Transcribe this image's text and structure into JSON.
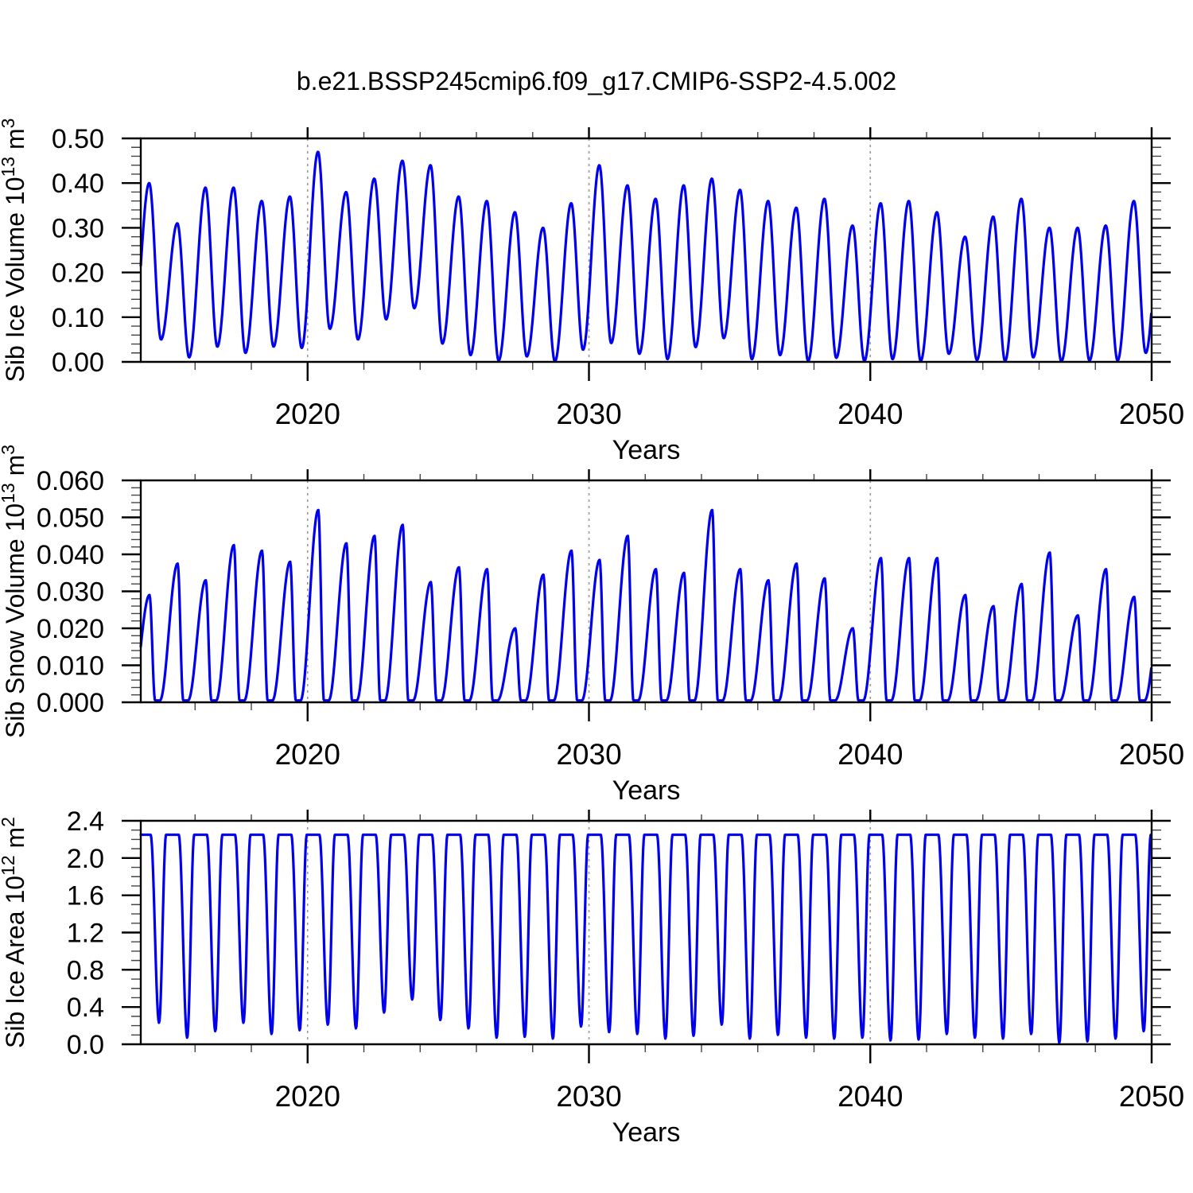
{
  "title": "b.e21.BSSP245cmip6.f09_g17.CMIP6-SSP2-4.5.002",
  "style": {
    "line_color": "#0000ee",
    "line_width": 3.2,
    "grid_color": "#9a9a9a",
    "axis_color": "#000000",
    "background": "#ffffff"
  },
  "chart_data": [
    {
      "id": "sib-ice-volume",
      "type": "line",
      "xlabel": "Years",
      "ylabel_plain": "Sib Ice Volume 10^13 m^3",
      "ylabel_segments": [
        {
          "t": "Sib Ice Volume 10"
        },
        {
          "t": "13",
          "sup": true
        },
        {
          "t": " m"
        },
        {
          "t": "3",
          "sup": true
        }
      ],
      "xlim": [
        2014.07,
        2050
      ],
      "ylim": [
        0,
        0.5
      ],
      "xticks": [
        {
          "v": 2020,
          "label": "2020"
        },
        {
          "v": 2030,
          "label": "2030"
        },
        {
          "v": 2040,
          "label": "2040"
        },
        {
          "v": 2050,
          "label": "2050"
        }
      ],
      "xminor_step": 2,
      "grid_x": [
        2020,
        2030,
        2040
      ],
      "yticks": [
        {
          "v": 0.0,
          "label": "0.00"
        },
        {
          "v": 0.1,
          "label": "0.10"
        },
        {
          "v": 0.2,
          "label": "0.20"
        },
        {
          "v": 0.3,
          "label": "0.30"
        },
        {
          "v": 0.4,
          "label": "0.40"
        },
        {
          "v": 0.5,
          "label": "0.50"
        }
      ],
      "yminor_step": 0.02,
      "seasonal_cycle": {
        "shape": "sinusoid",
        "peak_frac": 0.37,
        "trough_frac": 0.79
      },
      "years": [
        2014,
        2015,
        2016,
        2017,
        2018,
        2019,
        2020,
        2021,
        2022,
        2023,
        2024,
        2025,
        2026,
        2027,
        2028,
        2029,
        2030,
        2031,
        2032,
        2033,
        2034,
        2035,
        2036,
        2037,
        2038,
        2039,
        2040,
        2041,
        2042,
        2043,
        2044,
        2045,
        2046,
        2047,
        2048,
        2049
      ],
      "annual_max": [
        0.4,
        0.31,
        0.39,
        0.39,
        0.36,
        0.37,
        0.47,
        0.38,
        0.41,
        0.45,
        0.44,
        0.37,
        0.36,
        0.335,
        0.3,
        0.355,
        0.44,
        0.395,
        0.365,
        0.395,
        0.41,
        0.385,
        0.36,
        0.345,
        0.365,
        0.305,
        0.355,
        0.36,
        0.335,
        0.28,
        0.325,
        0.365,
        0.3,
        0.3,
        0.305,
        0.36
      ],
      "annual_min": [
        0.05,
        0.01,
        0.034,
        0.02,
        0.034,
        0.031,
        0.074,
        0.05,
        0.095,
        0.12,
        0.041,
        0.015,
        0.003,
        0.012,
        0.001,
        0.027,
        0.042,
        0.018,
        0.006,
        0.033,
        0.053,
        0.006,
        0.015,
        0.002,
        0.009,
        0.002,
        0.006,
        0.002,
        0.018,
        0.004,
        0.002,
        0.01,
        0.001,
        0.003,
        0.003,
        0.02
      ]
    },
    {
      "id": "sib-snow-volume",
      "type": "line",
      "xlabel": "Years",
      "ylabel_plain": "Sib Snow Volume 10^13 m^3",
      "ylabel_segments": [
        {
          "t": "Sib Snow Volume 10"
        },
        {
          "t": "13",
          "sup": true
        },
        {
          "t": " m"
        },
        {
          "t": "3",
          "sup": true
        }
      ],
      "xlim": [
        2014.07,
        2050
      ],
      "ylim": [
        0,
        0.06
      ],
      "xticks": [
        {
          "v": 2020,
          "label": "2020"
        },
        {
          "v": 2030,
          "label": "2030"
        },
        {
          "v": 2040,
          "label": "2040"
        },
        {
          "v": 2050,
          "label": "2050"
        }
      ],
      "xminor_step": 2,
      "grid_x": [
        2020,
        2030,
        2040
      ],
      "yticks": [
        {
          "v": 0.0,
          "label": "0.000"
        },
        {
          "v": 0.01,
          "label": "0.010"
        },
        {
          "v": 0.02,
          "label": "0.020"
        },
        {
          "v": 0.03,
          "label": "0.030"
        },
        {
          "v": 0.04,
          "label": "0.040"
        },
        {
          "v": 0.05,
          "label": "0.050"
        },
        {
          "v": 0.06,
          "label": "0.060"
        }
      ],
      "yminor_step": 0.002,
      "seasonal_cycle": {
        "shape": "snow",
        "peak_frac": 0.38,
        "melt_end_frac": 0.58,
        "accum_start_frac": 0.75,
        "floor_value": 0.0005
      },
      "years": [
        2014,
        2015,
        2016,
        2017,
        2018,
        2019,
        2020,
        2021,
        2022,
        2023,
        2024,
        2025,
        2026,
        2027,
        2028,
        2029,
        2030,
        2031,
        2032,
        2033,
        2034,
        2035,
        2036,
        2037,
        2038,
        2039,
        2040,
        2041,
        2042,
        2043,
        2044,
        2045,
        2046,
        2047,
        2048,
        2049
      ],
      "annual_max": [
        0.029,
        0.0375,
        0.033,
        0.0425,
        0.041,
        0.038,
        0.052,
        0.043,
        0.045,
        0.048,
        0.0325,
        0.0365,
        0.036,
        0.02,
        0.0345,
        0.041,
        0.0385,
        0.045,
        0.036,
        0.035,
        0.052,
        0.036,
        0.033,
        0.0375,
        0.0335,
        0.02,
        0.039,
        0.039,
        0.039,
        0.029,
        0.026,
        0.032,
        0.0405,
        0.0235,
        0.036,
        0.0285
      ],
      "annual_min": [
        0.0005,
        0.0005,
        0.0005,
        0.0005,
        0.0005,
        0.0005,
        0.0005,
        0.0005,
        0.0005,
        0.0005,
        0.0005,
        0.0005,
        0.0005,
        0.0005,
        0.0005,
        0.0005,
        0.0005,
        0.0005,
        0.0005,
        0.0005,
        0.0005,
        0.0005,
        0.0005,
        0.0005,
        0.0005,
        0.0005,
        0.0005,
        0.0005,
        0.0005,
        0.0005,
        0.0005,
        0.0005,
        0.0005,
        0.0005,
        0.0005,
        0.0005
      ]
    },
    {
      "id": "sib-ice-area",
      "type": "line",
      "xlabel": "Years",
      "ylabel_plain": "Sib Ice Area 10^12 m^2",
      "ylabel_segments": [
        {
          "t": "Sib Ice Area 10"
        },
        {
          "t": "12",
          "sup": true
        },
        {
          "t": " m"
        },
        {
          "t": "2",
          "sup": true
        }
      ],
      "xlim": [
        2014.07,
        2050
      ],
      "ylim": [
        0,
        2.4
      ],
      "xticks": [
        {
          "v": 2020,
          "label": "2020"
        },
        {
          "v": 2030,
          "label": "2030"
        },
        {
          "v": 2040,
          "label": "2040"
        },
        {
          "v": 2050,
          "label": "2050"
        }
      ],
      "xminor_step": 2,
      "grid_x": [
        2020,
        2030,
        2040
      ],
      "yticks": [
        {
          "v": 0.0,
          "label": "0.0"
        },
        {
          "v": 0.4,
          "label": "0.4"
        },
        {
          "v": 0.8,
          "label": "0.8"
        },
        {
          "v": 1.2,
          "label": "1.2"
        },
        {
          "v": 1.6,
          "label": "1.6"
        },
        {
          "v": 2.0,
          "label": "2.0"
        },
        {
          "v": 2.4,
          "label": "2.4"
        }
      ],
      "yminor_step": 0.1,
      "seasonal_cycle": {
        "shape": "plateau",
        "drop_start_frac": 0.42,
        "trough_frac": 0.72,
        "rise_end_frac": 0.97
      },
      "years": [
        2014,
        2015,
        2016,
        2017,
        2018,
        2019,
        2020,
        2021,
        2022,
        2023,
        2024,
        2025,
        2026,
        2027,
        2028,
        2029,
        2030,
        2031,
        2032,
        2033,
        2034,
        2035,
        2036,
        2037,
        2038,
        2039,
        2040,
        2041,
        2042,
        2043,
        2044,
        2045,
        2046,
        2047,
        2048,
        2049
      ],
      "annual_max": [
        2.25,
        2.25,
        2.25,
        2.25,
        2.25,
        2.25,
        2.25,
        2.25,
        2.25,
        2.25,
        2.25,
        2.25,
        2.25,
        2.25,
        2.25,
        2.25,
        2.25,
        2.25,
        2.25,
        2.25,
        2.25,
        2.25,
        2.25,
        2.25,
        2.25,
        2.25,
        2.25,
        2.25,
        2.25,
        2.25,
        2.25,
        2.25,
        2.25,
        2.25,
        2.25,
        2.25
      ],
      "annual_min": [
        0.23,
        0.07,
        0.14,
        0.23,
        0.11,
        0.15,
        0.21,
        0.17,
        0.34,
        0.48,
        0.26,
        0.17,
        0.07,
        0.08,
        0.06,
        0.19,
        0.13,
        0.11,
        0.06,
        0.09,
        0.21,
        0.06,
        0.1,
        0.07,
        0.06,
        0.07,
        0.04,
        0.05,
        0.11,
        0.07,
        0.06,
        0.11,
        0.015,
        0.03,
        0.06,
        0.14
      ]
    }
  ]
}
